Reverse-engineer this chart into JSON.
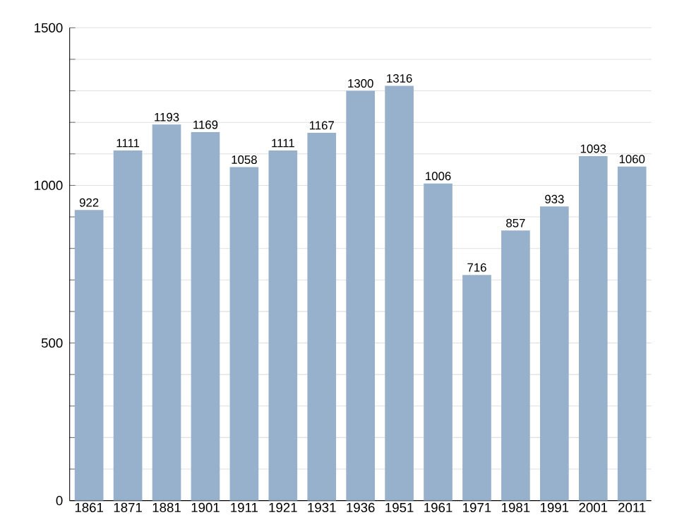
{
  "chart_data": {
    "type": "bar",
    "categories": [
      "1861",
      "1871",
      "1881",
      "1901",
      "1911",
      "1921",
      "1931",
      "1936",
      "1951",
      "1961",
      "1971",
      "1981",
      "1991",
      "2001",
      "2011"
    ],
    "values": [
      922,
      1111,
      1193,
      1169,
      1058,
      1111,
      1167,
      1300,
      1316,
      1006,
      716,
      857,
      933,
      1093,
      1060
    ],
    "color": "#97b0cc",
    "ylim": [
      0,
      1500
    ],
    "yticks": [
      0,
      {
        "value": 100,
        "label": null
      },
      {
        "value": 200,
        "label": null
      },
      {
        "value": 300,
        "label": null
      },
      {
        "value": 400,
        "label": null
      },
      500,
      {
        "value": 600,
        "label": null
      },
      {
        "value": 700,
        "label": null
      },
      {
        "value": 800,
        "label": null
      },
      {
        "value": 900,
        "label": null
      },
      1000,
      {
        "value": 1100,
        "label": null
      },
      {
        "value": 1200,
        "label": null
      },
      {
        "value": 1300,
        "label": null
      },
      {
        "value": 1400,
        "label": null
      },
      1500
    ],
    "grid": "y",
    "data_labels": true
  }
}
